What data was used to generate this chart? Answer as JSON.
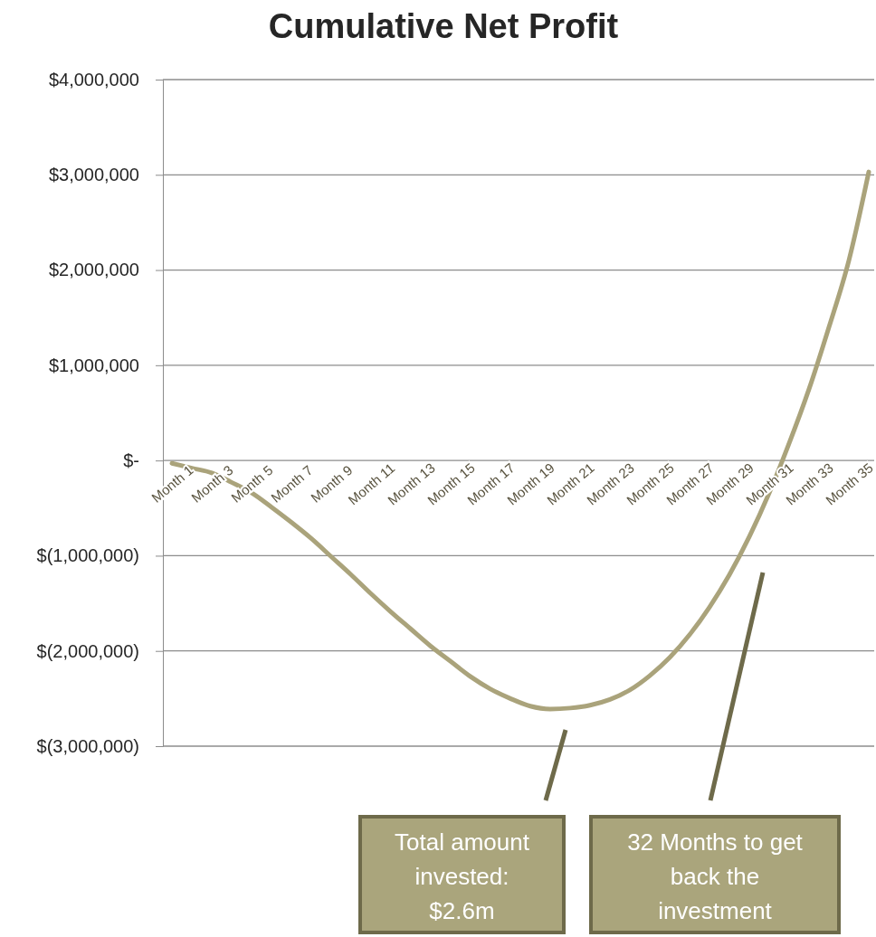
{
  "chart_data": {
    "type": "line",
    "title": "Cumulative Net Profit",
    "categories": [
      "Month 1",
      null,
      "Month 3",
      null,
      "Month 5",
      null,
      "Month 7",
      null,
      "Month 9",
      null,
      "Month 11",
      null,
      "Month 13",
      null,
      "Month 15",
      null,
      "Month 17",
      null,
      "Month 19",
      null,
      "Month 21",
      null,
      "Month 23",
      null,
      "Month 25",
      null,
      "Month 27",
      null,
      "Month 29",
      null,
      "Month 31",
      null,
      "Month 33",
      null,
      "Month 35",
      null
    ],
    "series": [
      {
        "color": "#aaa37b",
        "values": [
          -30000,
          -80000,
          -130000,
          -230000,
          -340000,
          -490000,
          -650000,
          -820000,
          -1010000,
          -1200000,
          -1400000,
          -1590000,
          -1770000,
          -1950000,
          -2110000,
          -2270000,
          -2400000,
          -2500000,
          -2580000,
          -2610000,
          -2600000,
          -2570000,
          -2510000,
          -2410000,
          -2260000,
          -2070000,
          -1830000,
          -1540000,
          -1200000,
          -800000,
          -340000,
          180000,
          750000,
          1400000,
          2100000,
          3030000
        ]
      }
    ],
    "ylim": [
      -3000000,
      4000000
    ],
    "yticks": [
      {
        "value": -3000000,
        "label": "$(3,000,000)"
      },
      {
        "value": -2000000,
        "label": "$(2,000,000)"
      },
      {
        "value": -1000000,
        "label": "$(1,000,000)"
      },
      {
        "value": 0,
        "label": "$-"
      },
      {
        "value": 1000000,
        "label": "$1,000,000"
      },
      {
        "value": 2000000,
        "label": "$2,000,000"
      },
      {
        "value": 3000000,
        "label": "$3,000,000"
      },
      {
        "value": 4000000,
        "label": "$4,000,000"
      }
    ],
    "grid": "y",
    "marker": "none",
    "line_style": "solid",
    "annotations": [
      "Total amount invested: $2.6m",
      "32 Months to get back the investment"
    ]
  }
}
